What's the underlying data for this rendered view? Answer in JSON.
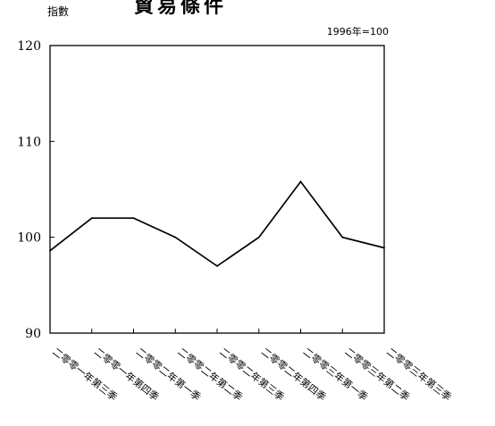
{
  "chart_data": {
    "type": "line",
    "title": "貿易條件",
    "ylabel": "指數",
    "base_note": "1996年=100",
    "ylim": [
      90,
      120
    ],
    "yticks": [
      90,
      100,
      110,
      120
    ],
    "categories": [
      "二零零一年第三季",
      "二零零一年第四季",
      "二零零二年第一季",
      "二零零二年第二季",
      "二零零二年第三季",
      "二零零二年第四季",
      "二零零三年第一季",
      "二零零三年第二季",
      "二零零三年第三季"
    ],
    "series": [
      {
        "values": [
          98.6,
          102,
          102,
          100,
          97,
          100,
          105.8,
          100,
          98.9
        ]
      }
    ],
    "grid": false,
    "legend": "none",
    "line_color": "#000000"
  }
}
